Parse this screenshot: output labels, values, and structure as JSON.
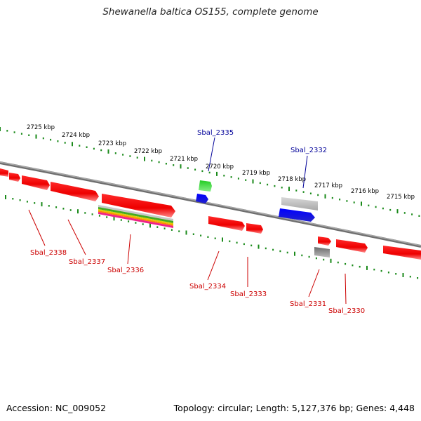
{
  "title": "Shewanella baltica OS155, complete genome",
  "footer": {
    "accession": "Accession: NC_009052",
    "summary": "Topology: circular; Length: 5,127,376 bp; Genes: 4,448"
  },
  "colors": {
    "backbone": "#8a8a8a",
    "tick": "#1a8a1a",
    "gene_forward": "#ff0000",
    "label_red": "#cc0000",
    "label_blue": "#000099",
    "blue_feature": "#0000ee",
    "green_feature": "#22bb22"
  },
  "scale": {
    "labels": [
      "2725 kbp",
      "2724 kbp",
      "2723 kbp",
      "2722 kbp",
      "2721 kbp",
      "2720 kbp",
      "2719 kbp",
      "2718 kbp",
      "2717 kbp",
      "2716 kbp",
      "2715 kbp"
    ]
  },
  "genes_below": [
    "Sbal_2338",
    "Sbal_2337",
    "Sbal_2336",
    "Sbal_2334",
    "Sbal_2333",
    "Sbal_2331",
    "Sbal_2330"
  ],
  "genes_above": [
    "Sbal_2335",
    "Sbal_2332"
  ]
}
